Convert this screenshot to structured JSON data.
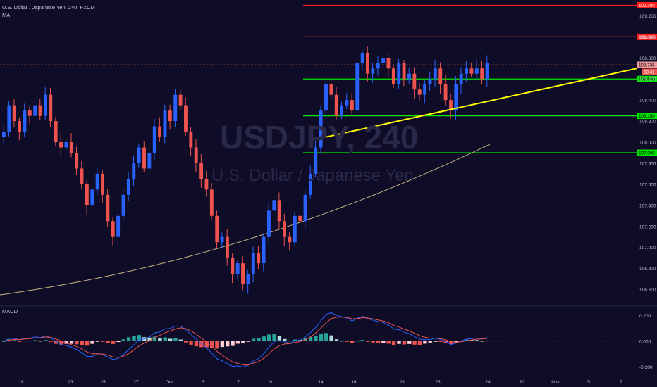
{
  "header": {
    "symbol_line": "U.S. Dollar / Japanese Yen, 240, FXCM",
    "indicator": "MA"
  },
  "watermark": {
    "ticker": "USDJPY, 240",
    "name": "U.S. Dollar / Japanese Yen"
  },
  "macd": {
    "label": "MACD",
    "ticks": [
      {
        "value": 0.2,
        "label": "0.200"
      },
      {
        "value": 0.0,
        "label": "0.000"
      },
      {
        "value": -0.2,
        "label": "-0.200"
      }
    ]
  },
  "colors": {
    "background": "#0e0c26",
    "bull": "#2962ff",
    "bear": "#ef5350",
    "red_level": "#ff1a1a",
    "green_level": "#00e600",
    "trendline": "#ffff00",
    "ma": "#c8b482",
    "macd_line": "#2962ff",
    "signal_line": "#ef5350"
  },
  "chart_data": {
    "type": "candlestick",
    "symbol": "USDJPY",
    "timeframe": "240",
    "price_range": [
      106.45,
      109.35
    ],
    "y_ticks": [
      "109.200",
      "109.000",
      "108.800",
      "108.600",
      "108.400",
      "108.200",
      "108.000",
      "107.800",
      "107.600",
      "107.400",
      "107.200",
      "107.000",
      "106.800",
      "106.600"
    ],
    "x_ticks": [
      "18",
      "23",
      "25",
      "27",
      "Oct",
      "3",
      "7",
      "9",
      "14",
      "16",
      "21",
      "23",
      "28",
      "30",
      "Nov",
      "5",
      "7"
    ],
    "horizontal_levels": [
      {
        "price": 109.3,
        "label": "109.300",
        "color": "red"
      },
      {
        "price": 109.0,
        "label": "109.000",
        "color": "red"
      },
      {
        "price": 108.6,
        "label": "108.600",
        "color": "green"
      },
      {
        "price": 108.25,
        "label": "108.250",
        "color": "green"
      },
      {
        "price": 107.9,
        "label": "107.900",
        "color": "green"
      }
    ],
    "last_price": {
      "price": 108.735,
      "label": "108.735",
      "countdown": "53:41"
    },
    "trendline": {
      "from": {
        "x": "Oct 11",
        "price": 108.05
      },
      "to": {
        "x": "Nov 7",
        "price": 108.7
      }
    },
    "moving_average": {
      "start": 106.55,
      "end": 107.98
    },
    "macd": {
      "range": [
        -0.27,
        0.27
      ]
    },
    "ohlc_path": [
      108.1,
      108.35,
      108.2,
      108.1,
      108.3,
      108.25,
      108.35,
      108.25,
      108.45,
      108.2,
      108.0,
      107.95,
      108.0,
      107.9,
      107.75,
      107.6,
      107.4,
      107.55,
      107.7,
      107.5,
      107.25,
      107.1,
      107.3,
      107.5,
      107.65,
      107.8,
      107.95,
      107.75,
      107.9,
      108.15,
      108.05,
      108.3,
      108.2,
      108.45,
      108.35,
      108.1,
      107.95,
      107.8,
      107.65,
      107.55,
      107.3,
      107.05,
      107.1,
      106.9,
      106.75,
      106.85,
      106.65,
      106.75,
      106.95,
      106.85,
      107.1,
      107.35,
      107.45,
      107.25,
      107.1,
      107.05,
      107.3,
      107.25,
      107.5,
      107.7,
      107.95,
      108.3,
      108.55,
      108.45,
      108.25,
      108.35,
      108.4,
      108.3,
      108.75,
      108.85,
      108.65,
      108.7,
      108.75,
      108.8,
      108.7,
      108.55,
      108.75,
      108.6,
      108.65,
      108.5,
      108.45,
      108.55,
      108.6,
      108.7,
      108.55,
      108.4,
      108.3,
      108.55,
      108.65,
      108.7,
      108.65,
      108.7,
      108.6,
      108.75
    ]
  }
}
